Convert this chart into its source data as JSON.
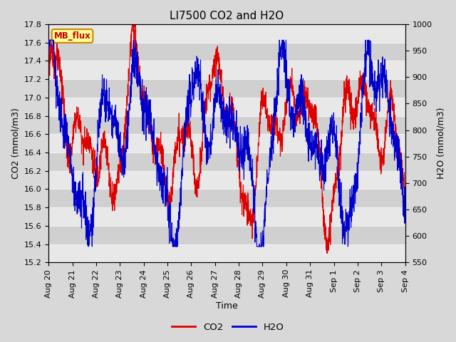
{
  "title": "LI7500 CO2 and H2O",
  "xlabel": "Time",
  "ylabel_left": "CO2 (mmol/m3)",
  "ylabel_right": "H2O (mmol/m3)",
  "co2_ylim": [
    15.2,
    17.8
  ],
  "h2o_ylim": [
    550,
    1000
  ],
  "co2_yticks": [
    15.2,
    15.4,
    15.6,
    15.8,
    16.0,
    16.2,
    16.4,
    16.6,
    16.8,
    17.0,
    17.2,
    17.4,
    17.6,
    17.8
  ],
  "h2o_yticks": [
    550,
    600,
    650,
    700,
    750,
    800,
    850,
    900,
    950,
    1000
  ],
  "co2_color": "#dd0000",
  "h2o_color": "#0000cc",
  "background_color": "#d8d8d8",
  "plot_bg_color": "#d8d8d8",
  "annotation_text": "MB_flux",
  "annotation_color": "#cc0000",
  "annotation_bg": "#ffff99",
  "annotation_edge": "#cc8800",
  "grid_color": "#f0f0f0",
  "num_points": 2000,
  "xtick_labels": [
    "Aug 20",
    "Aug 21",
    "Aug 22",
    "Aug 23",
    "Aug 24",
    "Aug 25",
    "Aug 26",
    "Aug 27",
    "Aug 28",
    "Aug 29",
    "Aug 30",
    "Aug 31",
    "Sep 1",
    "Sep 2",
    "Sep 3",
    "Sep 4"
  ],
  "title_fontsize": 11,
  "label_fontsize": 9,
  "tick_fontsize": 8
}
